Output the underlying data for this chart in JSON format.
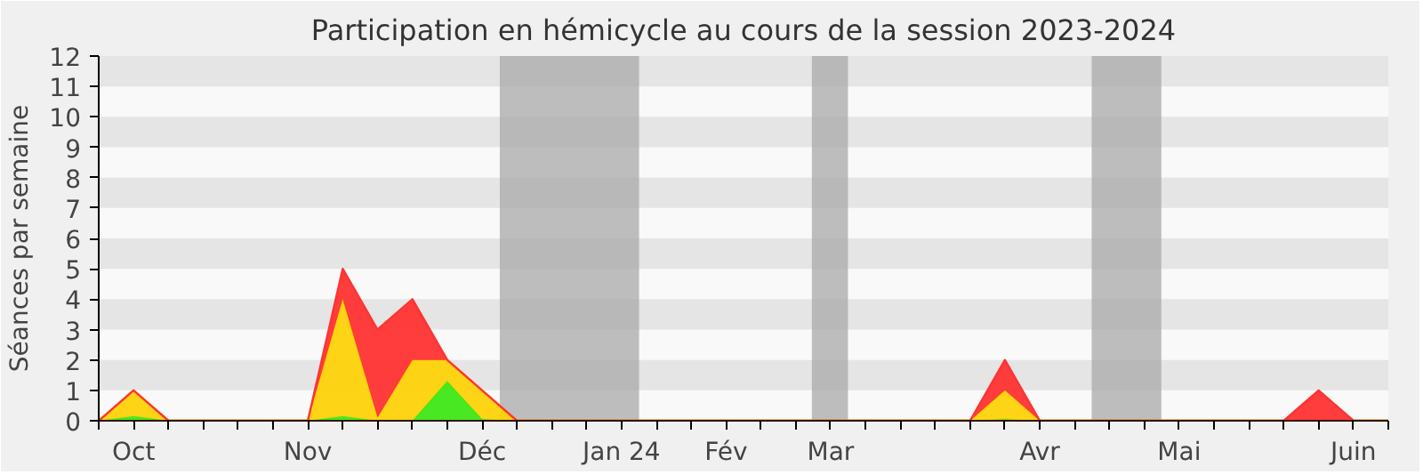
{
  "chart_data": {
    "type": "area",
    "stacked": true,
    "title": "Participation en hémicycle au cours de la session 2023-2024",
    "ylabel": "Séances par semaine",
    "categories": [
      null,
      "Oct",
      null,
      null,
      null,
      null,
      "Nov",
      null,
      null,
      null,
      null,
      "Déc",
      null,
      null,
      null,
      "Jan 24",
      null,
      null,
      "Fév",
      null,
      null,
      "Mar",
      null,
      null,
      null,
      null,
      null,
      "Avr",
      null,
      null,
      null,
      "Mai",
      null,
      null,
      null,
      null,
      "Juin",
      null
    ],
    "series": [
      {
        "color": "#3ee816",
        "values": [
          0,
          0.15,
          0,
          0,
          0,
          0,
          0,
          0.15,
          0,
          0,
          1.3,
          0.05,
          0,
          0,
          0,
          0,
          0,
          0,
          0,
          0,
          0,
          0,
          0,
          0,
          0,
          0,
          0.05,
          0,
          0,
          0,
          0,
          0,
          0,
          0,
          0,
          0,
          0,
          0
        ]
      },
      {
        "color": "#fdd20a",
        "values": [
          0,
          0.85,
          0,
          0,
          0,
          0,
          0,
          3.85,
          0.1,
          2,
          0.7,
          0.95,
          0,
          0,
          0,
          0,
          0,
          0,
          0,
          0,
          0,
          0,
          0,
          0,
          0,
          0,
          0.95,
          0,
          0,
          0,
          0,
          0,
          0,
          0,
          0,
          0,
          0,
          0
        ]
      },
      {
        "color": "#ff3333",
        "values": [
          0,
          0,
          0,
          0,
          0,
          0,
          0,
          1,
          2.9,
          2,
          0,
          0,
          0,
          0,
          0,
          0,
          0,
          0,
          0,
          0,
          0,
          0,
          0,
          0,
          0,
          0,
          1,
          0,
          0,
          0,
          0,
          0,
          0,
          0,
          0,
          1,
          0,
          0
        ]
      }
    ],
    "ylim": [
      0,
      12
    ],
    "yticks": [
      0,
      1,
      2,
      3,
      4,
      5,
      6,
      7,
      8,
      9,
      10,
      11,
      12
    ]
  }
}
